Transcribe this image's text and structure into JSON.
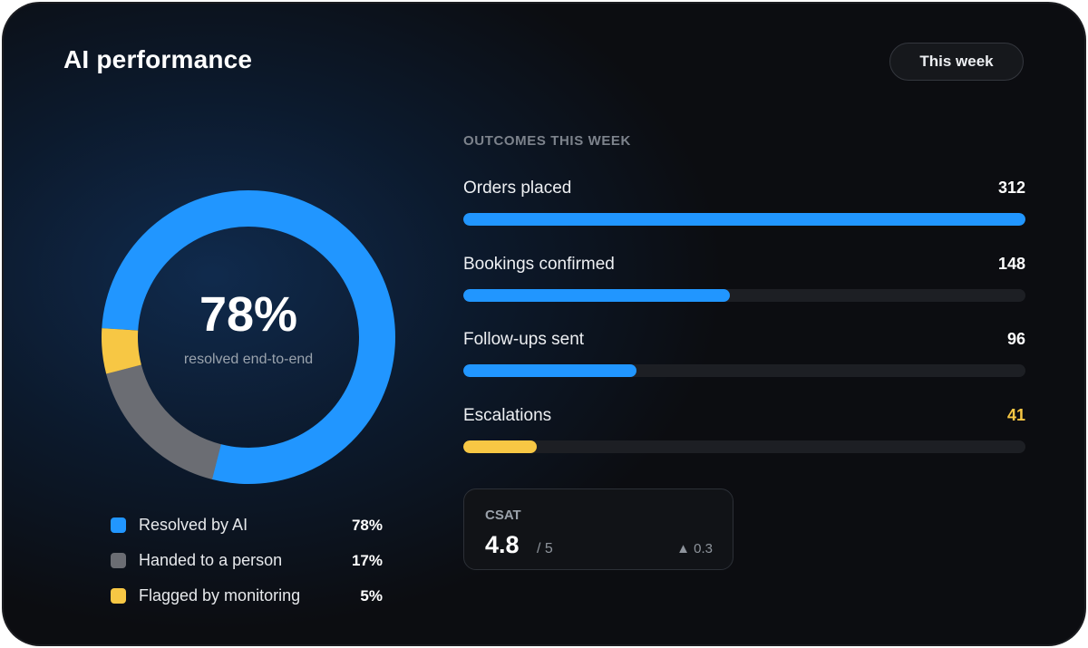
{
  "header": {
    "title": "AI performance",
    "period_button": "This week"
  },
  "donut": {
    "center_value": "78%",
    "center_caption": "resolved end-to-end",
    "segments": [
      {
        "label": "Resolved by AI",
        "value": 78,
        "display": "78%",
        "color": "#2196ff"
      },
      {
        "label": "Handed to a person",
        "value": 17,
        "display": "17%",
        "color": "#6b6d73"
      },
      {
        "label": "Flagged by monitoring",
        "value": 5,
        "display": "5%",
        "color": "#f7c744"
      }
    ]
  },
  "outcomes": {
    "section_label": "OUTCOMES THIS WEEK",
    "max_value": 312,
    "items": [
      {
        "label": "Orders placed",
        "value": 312,
        "display": "312",
        "color": "#2196ff",
        "value_color": "#ffffff"
      },
      {
        "label": "Bookings confirmed",
        "value": 148,
        "display": "148",
        "color": "#2196ff",
        "value_color": "#ffffff"
      },
      {
        "label": "Follow-ups sent",
        "value": 96,
        "display": "96",
        "color": "#2196ff",
        "value_color": "#ffffff"
      },
      {
        "label": "Escalations",
        "value": 41,
        "display": "41",
        "color": "#f7c744",
        "value_color": "#f7c744"
      }
    ]
  },
  "csat": {
    "label": "CSAT",
    "score": "4.8",
    "max": "/ 5",
    "delta": "▲ 0.3"
  }
}
